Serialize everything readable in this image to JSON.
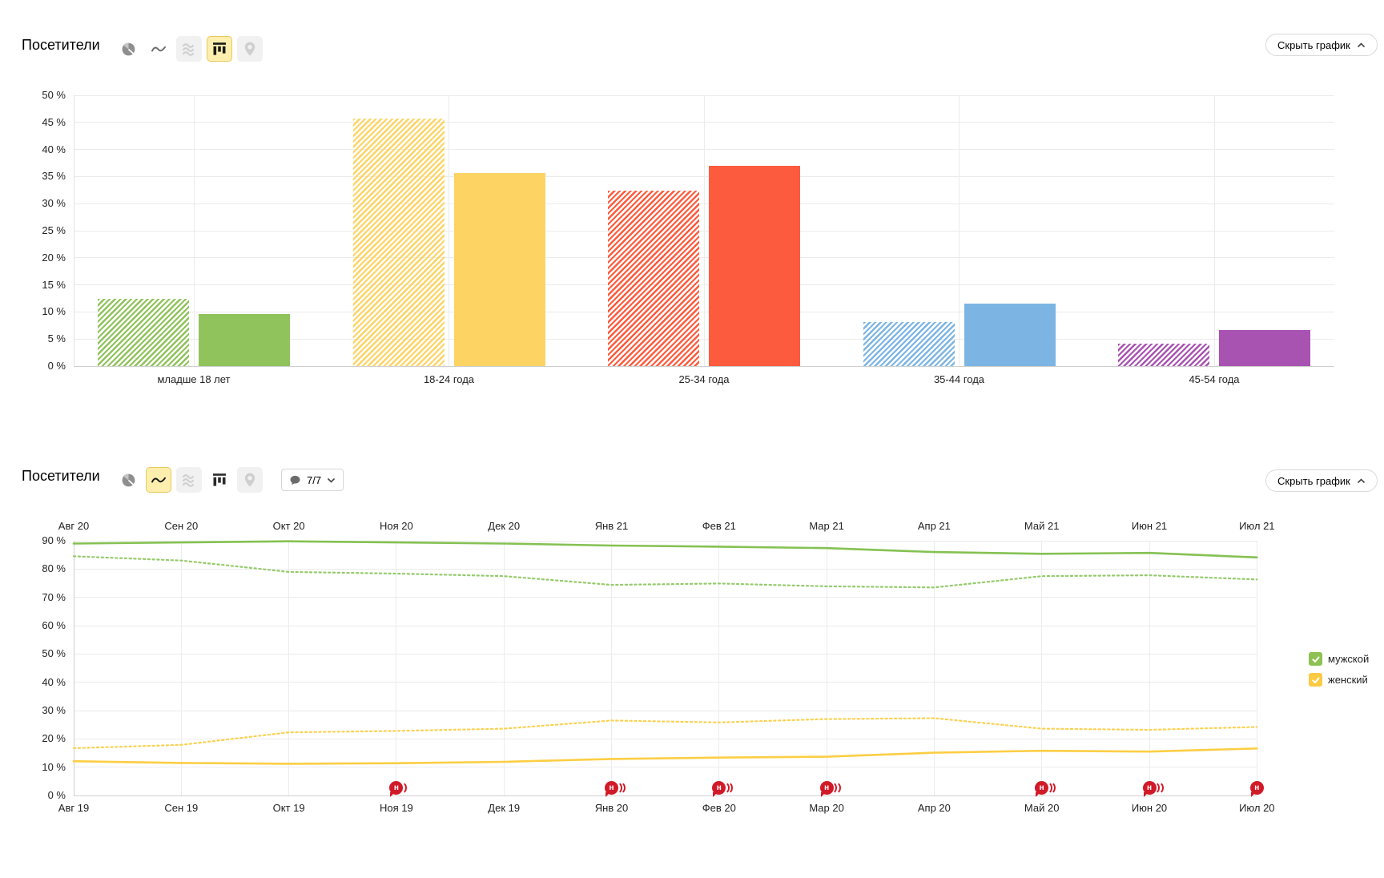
{
  "bar_section": {
    "title": "Посетители",
    "hide_button_label": "Скрыть график",
    "toolbar_icons": [
      {
        "name": "pie-chart-icon",
        "state": "enabled"
      },
      {
        "name": "line-chart-icon",
        "state": "enabled"
      },
      {
        "name": "stacked-area-icon",
        "state": "disabled"
      },
      {
        "name": "bar-chart-icon",
        "state": "active"
      },
      {
        "name": "map-pin-icon",
        "state": "disabled"
      }
    ]
  },
  "line_section": {
    "title": "Посетители",
    "hide_button_label": "Скрыть график",
    "comments_dropdown": {
      "icon": "comment-bubble-icon",
      "value": "7/7"
    },
    "toolbar_icons": [
      {
        "name": "pie-chart-icon",
        "state": "enabled"
      },
      {
        "name": "line-chart-icon",
        "state": "active"
      },
      {
        "name": "stacked-area-icon",
        "state": "disabled"
      },
      {
        "name": "bar-chart-icon",
        "state": "enabled"
      },
      {
        "name": "map-pin-icon",
        "state": "disabled"
      }
    ]
  },
  "chart_data": [
    {
      "type": "bar",
      "title": "Посетители",
      "categories": [
        "младше 18 лет",
        "18-24 года",
        "25-34 года",
        "35-44 года",
        "45-54 года"
      ],
      "series": [
        {
          "name": "hatched",
          "pattern": "diagonal-hatch",
          "values": [
            12.5,
            45.7,
            32.4,
            8.2,
            4.1
          ]
        },
        {
          "name": "solid",
          "pattern": "solid",
          "values": [
            9.6,
            35.7,
            37.0,
            11.6,
            6.7
          ]
        }
      ],
      "category_colors": [
        "#90c35c",
        "#fdd464",
        "#fd5b3d",
        "#7cb5e3",
        "#a852b2"
      ],
      "ylabel_unit": "%",
      "ylim": [
        0,
        50
      ],
      "ytick_step": 5,
      "grid": true
    },
    {
      "type": "line",
      "title": "Посетители",
      "x_top": [
        "Авг 20",
        "Сен 20",
        "Окт 20",
        "Ноя 20",
        "Дек 20",
        "Янв 21",
        "Фев 21",
        "Мар 21",
        "Апр 21",
        "Май 21",
        "Июн 21",
        "Июл 21"
      ],
      "x_bottom": [
        "Авг 19",
        "Сен 19",
        "Окт 19",
        "Ноя 19",
        "Дек 19",
        "Янв 20",
        "Фев 20",
        "Мар 20",
        "Апр 20",
        "Май 20",
        "Июн 20",
        "Июл 20"
      ],
      "ylim": [
        0,
        90
      ],
      "ytick_step": 10,
      "ylabel_unit": "%",
      "legend_position": "right",
      "legend": [
        {
          "label": "мужской",
          "color": "#8dc153"
        },
        {
          "label": "женский",
          "color": "#fcca43"
        }
      ],
      "series": [
        {
          "name": "мужской",
          "period": "current",
          "style": "solid",
          "color": "#85c152",
          "values": [
            89.0,
            89.4,
            89.8,
            89.4,
            89.0,
            88.3,
            87.9,
            87.4,
            86.0,
            85.4,
            85.7,
            84.1
          ]
        },
        {
          "name": "мужской",
          "period": "comparison",
          "style": "dotted",
          "color": "#95ca6b",
          "values": [
            84.5,
            83.0,
            79.0,
            78.4,
            77.5,
            74.4,
            74.9,
            73.9,
            73.5,
            77.5,
            77.8,
            76.3
          ]
        },
        {
          "name": "женский",
          "period": "current",
          "style": "solid",
          "color": "#fcce44",
          "values": [
            12.1,
            11.5,
            11.2,
            11.4,
            11.9,
            12.9,
            13.4,
            13.7,
            15.1,
            15.8,
            15.5,
            16.6
          ]
        },
        {
          "name": "женский",
          "period": "comparison",
          "style": "dotted",
          "color": "#fbd14f",
          "values": [
            16.7,
            17.9,
            22.3,
            22.8,
            23.6,
            26.5,
            25.8,
            27.0,
            27.3,
            23.6,
            23.2,
            24.2
          ]
        }
      ],
      "annotations": [
        {
          "x_index": 3,
          "x_label": "Ноя 19",
          "glyph": "н",
          "stacked_bubbles": 2
        },
        {
          "x_index": 5,
          "x_label": "Янв 20",
          "glyph": "н",
          "stacked_bubbles": 3
        },
        {
          "x_index": 6,
          "x_label": "Фев 20",
          "glyph": "н",
          "stacked_bubbles": 3
        },
        {
          "x_index": 7,
          "x_label": "Мар 20",
          "glyph": "н",
          "stacked_bubbles": 3
        },
        {
          "x_index": 9,
          "x_label": "Май 20",
          "glyph": "н",
          "stacked_bubbles": 3
        },
        {
          "x_index": 10,
          "x_label": "Июн 20",
          "glyph": "н",
          "stacked_bubbles": 3
        },
        {
          "x_index": 11,
          "x_label": "Июл 20",
          "glyph": "н",
          "stacked_bubbles": 1
        }
      ],
      "marker_color": "#d11a28"
    }
  ]
}
